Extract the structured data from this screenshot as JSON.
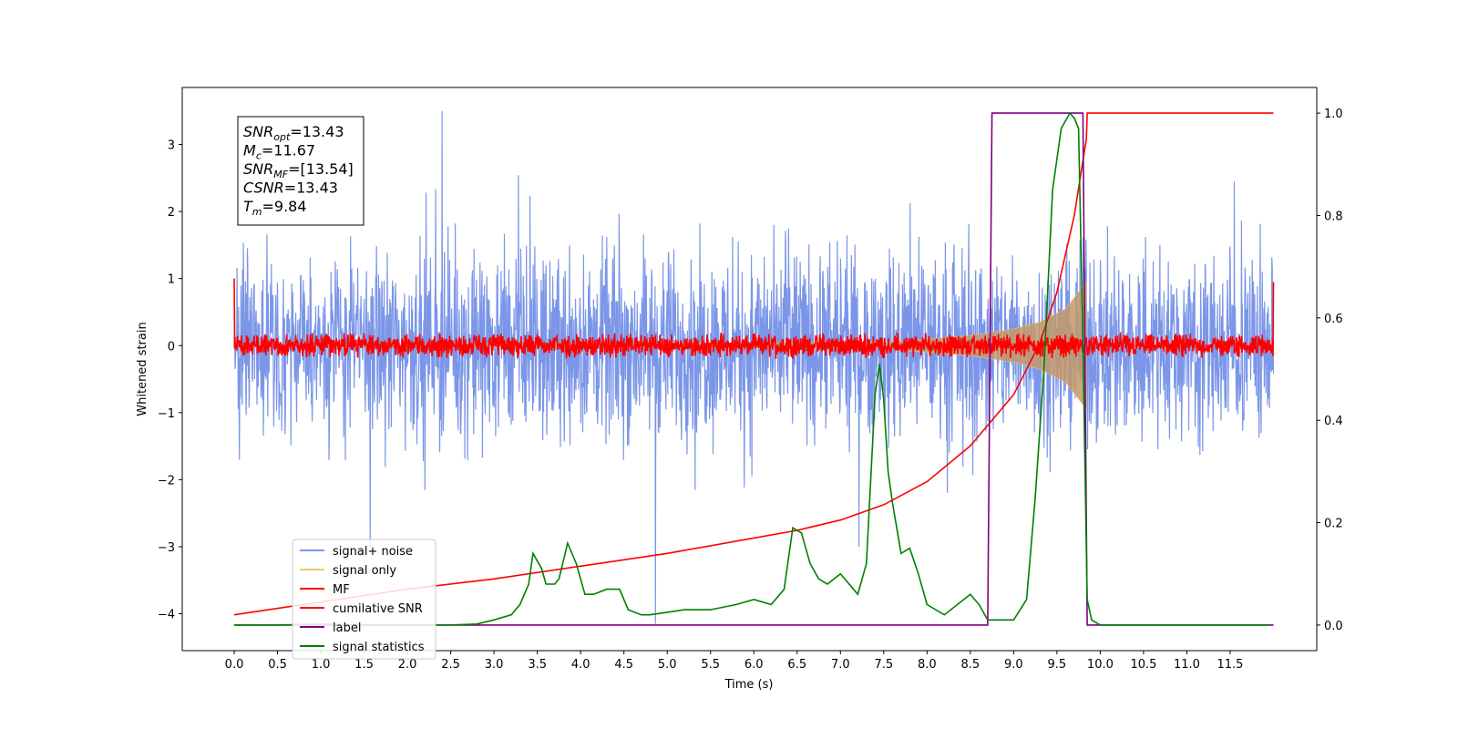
{
  "chart_data": {
    "type": "line",
    "xlabel": "Time (s)",
    "ylabel": "Whitened strain",
    "xlim": [
      -0.6,
      12.5
    ],
    "ylim": [
      -4.55,
      3.85
    ],
    "ylim_right": [
      -0.05,
      1.05
    ],
    "x_ticks": [
      "0.0",
      "0.5",
      "1.0",
      "1.5",
      "2.0",
      "2.5",
      "3.0",
      "3.5",
      "4.0",
      "4.5",
      "5.0",
      "5.5",
      "6.0",
      "6.5",
      "7.0",
      "7.5",
      "8.0",
      "8.5",
      "9.0",
      "9.5",
      "10.0",
      "10.5",
      "11.0",
      "11.5"
    ],
    "y_ticks": [
      "3",
      "2",
      "1",
      "0",
      "−1",
      "−2",
      "−3",
      "−4"
    ],
    "y_ticks_right": [
      "1.0",
      "0.8",
      "0.6",
      "0.4",
      "0.2",
      "0.0"
    ],
    "grid": false,
    "legend_position": "lower-left",
    "annotation": [
      {
        "base": "SNR",
        "sub": "opt",
        "value": "=13.43"
      },
      {
        "base": "M",
        "sub": "c",
        "value": "=11.67"
      },
      {
        "base": "SNR",
        "sub": "MF",
        "value": "=[13.54]"
      },
      {
        "base": "CSNR",
        "sub": "",
        "value": "=13.43"
      },
      {
        "base": "T",
        "sub": "m",
        "value": "=9.84"
      }
    ],
    "series": [
      {
        "name": "signal+ noise",
        "color": "#7b96e8",
        "axis": "left",
        "description_values": {
          "noise_amplitude_typ": 1.6,
          "max": 3.5,
          "min": -4.15
        }
      },
      {
        "name": "signal only",
        "color": "#f5c66b",
        "axis": "left",
        "envelope": {
          "t": [
            0.0,
            7.5,
            8.0,
            8.5,
            9.0,
            9.3,
            9.6,
            9.84
          ],
          "amp": [
            0.0,
            0.05,
            0.1,
            0.15,
            0.25,
            0.35,
            0.55,
            0.95
          ]
        }
      },
      {
        "name": "MF",
        "color": "#ff0000",
        "axis": "left",
        "description_values": {
          "noise_amplitude_typ": 0.12,
          "start": 1.0,
          "end": 0.95
        }
      },
      {
        "name": "cumilative SNR",
        "color": "#ff0000",
        "axis": "right",
        "x": [
          0.0,
          1.0,
          2.0,
          3.0,
          4.0,
          5.0,
          6.0,
          6.5,
          7.0,
          7.5,
          8.0,
          8.5,
          9.0,
          9.3,
          9.5,
          9.7,
          9.84,
          9.85,
          12.0
        ],
        "y": [
          0.02,
          0.045,
          0.07,
          0.09,
          0.115,
          0.14,
          0.17,
          0.185,
          0.205,
          0.235,
          0.28,
          0.35,
          0.45,
          0.55,
          0.65,
          0.8,
          0.95,
          1.0,
          1.0
        ]
      },
      {
        "name": "label",
        "color": "#800080",
        "axis": "right",
        "x": [
          0.0,
          8.7,
          8.75,
          9.8,
          9.85,
          12.0
        ],
        "y": [
          0.0,
          0.0,
          1.0,
          1.0,
          0.0,
          0.0
        ]
      },
      {
        "name": "signal statistics",
        "color": "#008000",
        "axis": "right",
        "x": [
          0.0,
          0.5,
          1.0,
          1.5,
          2.0,
          2.5,
          2.8,
          3.0,
          3.2,
          3.3,
          3.4,
          3.45,
          3.55,
          3.6,
          3.7,
          3.75,
          3.85,
          3.95,
          4.05,
          4.15,
          4.3,
          4.45,
          4.55,
          4.7,
          4.8,
          5.0,
          5.2,
          5.5,
          5.8,
          6.0,
          6.2,
          6.35,
          6.45,
          6.55,
          6.65,
          6.75,
          6.85,
          7.0,
          7.2,
          7.3,
          7.4,
          7.45,
          7.5,
          7.55,
          7.6,
          7.7,
          7.8,
          7.9,
          8.0,
          8.2,
          8.5,
          8.6,
          8.7,
          8.85,
          9.0,
          9.15,
          9.25,
          9.35,
          9.45,
          9.55,
          9.65,
          9.7,
          9.75,
          9.8,
          9.85,
          9.9,
          10.0,
          10.5,
          11.0,
          11.5,
          11.95
        ],
        "y": [
          0.0,
          0.0,
          0.002,
          0.0,
          0.0,
          0.0,
          0.002,
          0.01,
          0.02,
          0.04,
          0.08,
          0.14,
          0.11,
          0.08,
          0.08,
          0.09,
          0.16,
          0.12,
          0.06,
          0.06,
          0.07,
          0.07,
          0.03,
          0.02,
          0.02,
          0.025,
          0.03,
          0.03,
          0.04,
          0.05,
          0.04,
          0.07,
          0.19,
          0.18,
          0.12,
          0.09,
          0.08,
          0.1,
          0.06,
          0.12,
          0.45,
          0.51,
          0.44,
          0.3,
          0.24,
          0.14,
          0.15,
          0.1,
          0.04,
          0.02,
          0.06,
          0.04,
          0.01,
          0.01,
          0.01,
          0.05,
          0.25,
          0.5,
          0.85,
          0.97,
          1.0,
          0.99,
          0.97,
          0.55,
          0.05,
          0.01,
          0.0,
          0.0,
          0.0,
          0.0,
          0.0
        ]
      }
    ]
  }
}
